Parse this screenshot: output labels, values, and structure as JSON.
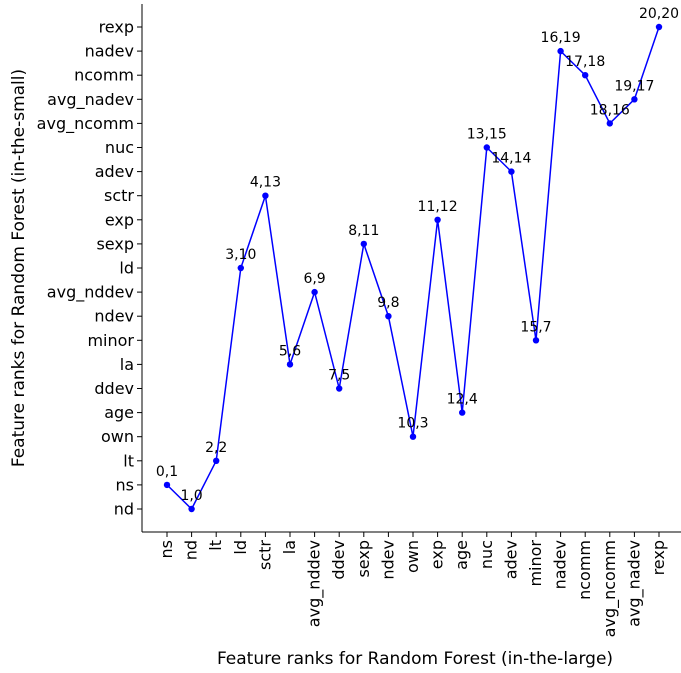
{
  "chart_data": {
    "type": "line",
    "title": "",
    "xlabel": "Feature ranks for Random Forest (in-the-large)",
    "ylabel": "Feature ranks for Random Forest (in-the-small)",
    "x_categories": [
      "ns",
      "nd",
      "lt",
      "ld",
      "sctr",
      "la",
      "avg_nddev",
      "ddev",
      "sexp",
      "ndev",
      "own",
      "exp",
      "age",
      "nuc",
      "adev",
      "minor",
      "nadev",
      "ncomm",
      "avg_ncomm",
      "avg_nadev",
      "rexp"
    ],
    "y_categories": [
      "nd",
      "ns",
      "lt",
      "own",
      "age",
      "ddev",
      "la",
      "minor",
      "ndev",
      "avg_nddev",
      "ld",
      "sexp",
      "exp",
      "sctr",
      "adev",
      "nuc",
      "avg_ncomm",
      "avg_nadev",
      "ncomm",
      "nadev",
      "rexp"
    ],
    "series": [
      {
        "x": [
          0,
          1,
          2,
          3,
          4,
          5,
          6,
          7,
          8,
          9,
          10,
          11,
          12,
          13,
          14,
          15,
          16,
          17,
          18,
          19,
          20
        ],
        "y": [
          1,
          0,
          2,
          10,
          13,
          6,
          9,
          5,
          11,
          8,
          3,
          12,
          4,
          15,
          14,
          7,
          19,
          18,
          16,
          17,
          20
        ],
        "labels": [
          "0,1",
          "1,0",
          "2,2",
          "3,10",
          "4,13",
          "5,6",
          "6,9",
          "7,5",
          "8,11",
          "9,8",
          "10,3",
          "11,12",
          "12,4",
          "13,15",
          "14,14",
          "15,7",
          "16,19",
          "17,18",
          "18,16",
          "19,17",
          "20,20"
        ]
      }
    ],
    "color": "#0000ff",
    "grid": false,
    "legend": "none"
  }
}
